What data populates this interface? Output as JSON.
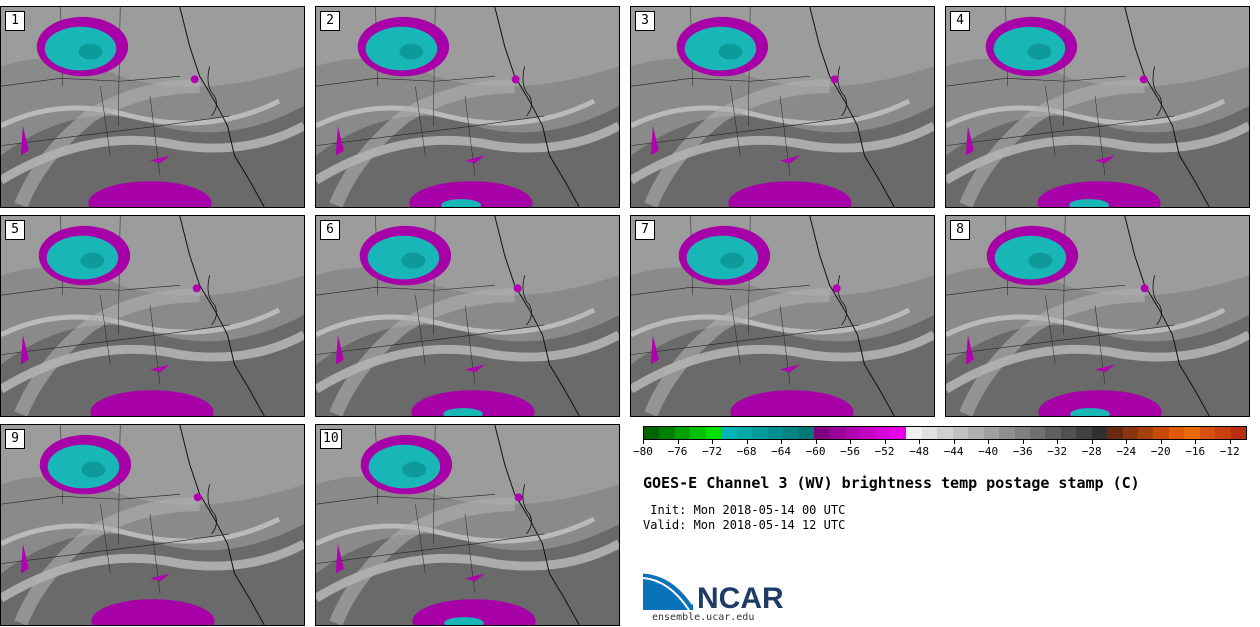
{
  "stamps": [
    {
      "number": "1"
    },
    {
      "number": "2"
    },
    {
      "number": "3"
    },
    {
      "number": "4"
    },
    {
      "number": "5"
    },
    {
      "number": "6"
    },
    {
      "number": "7"
    },
    {
      "number": "8"
    },
    {
      "number": "9"
    },
    {
      "number": "10"
    }
  ],
  "colorbar": {
    "ticks": [
      "−80",
      "−76",
      "−72",
      "−68",
      "−64",
      "−60",
      "−56",
      "−52",
      "−48",
      "−44",
      "−40",
      "−36",
      "−32",
      "−28",
      "−24",
      "−20",
      "−16",
      "−12"
    ],
    "colors": [
      "#006400",
      "#008000",
      "#00a000",
      "#00c000",
      "#00e000",
      "#00b4b4",
      "#00a8a8",
      "#009c9c",
      "#009090",
      "#008484",
      "#007878",
      "#800080",
      "#9a009a",
      "#b000b0",
      "#c400c4",
      "#d800d8",
      "#e800e8",
      "#f0f0f0",
      "#e0e0e0",
      "#d0d0d0",
      "#c0c0c0",
      "#b0b0b0",
      "#a0a0a0",
      "#909090",
      "#808080",
      "#707070",
      "#606060",
      "#505050",
      "#404040",
      "#303030",
      "#6b2a10",
      "#8a3510",
      "#a8400c",
      "#c84a08",
      "#e05a06",
      "#e86a08",
      "#d85010",
      "#c84010",
      "#b83010"
    ]
  },
  "title": "GOES-E Channel 3 (WV) brightness temp postage stamp (C)",
  "init": " Init: Mon 2018-05-14 00 UTC",
  "valid": "Valid: Mon 2018-05-14 12 UTC",
  "logo": {
    "text": "NCAR",
    "url": "ensemble.ucar.edu"
  }
}
